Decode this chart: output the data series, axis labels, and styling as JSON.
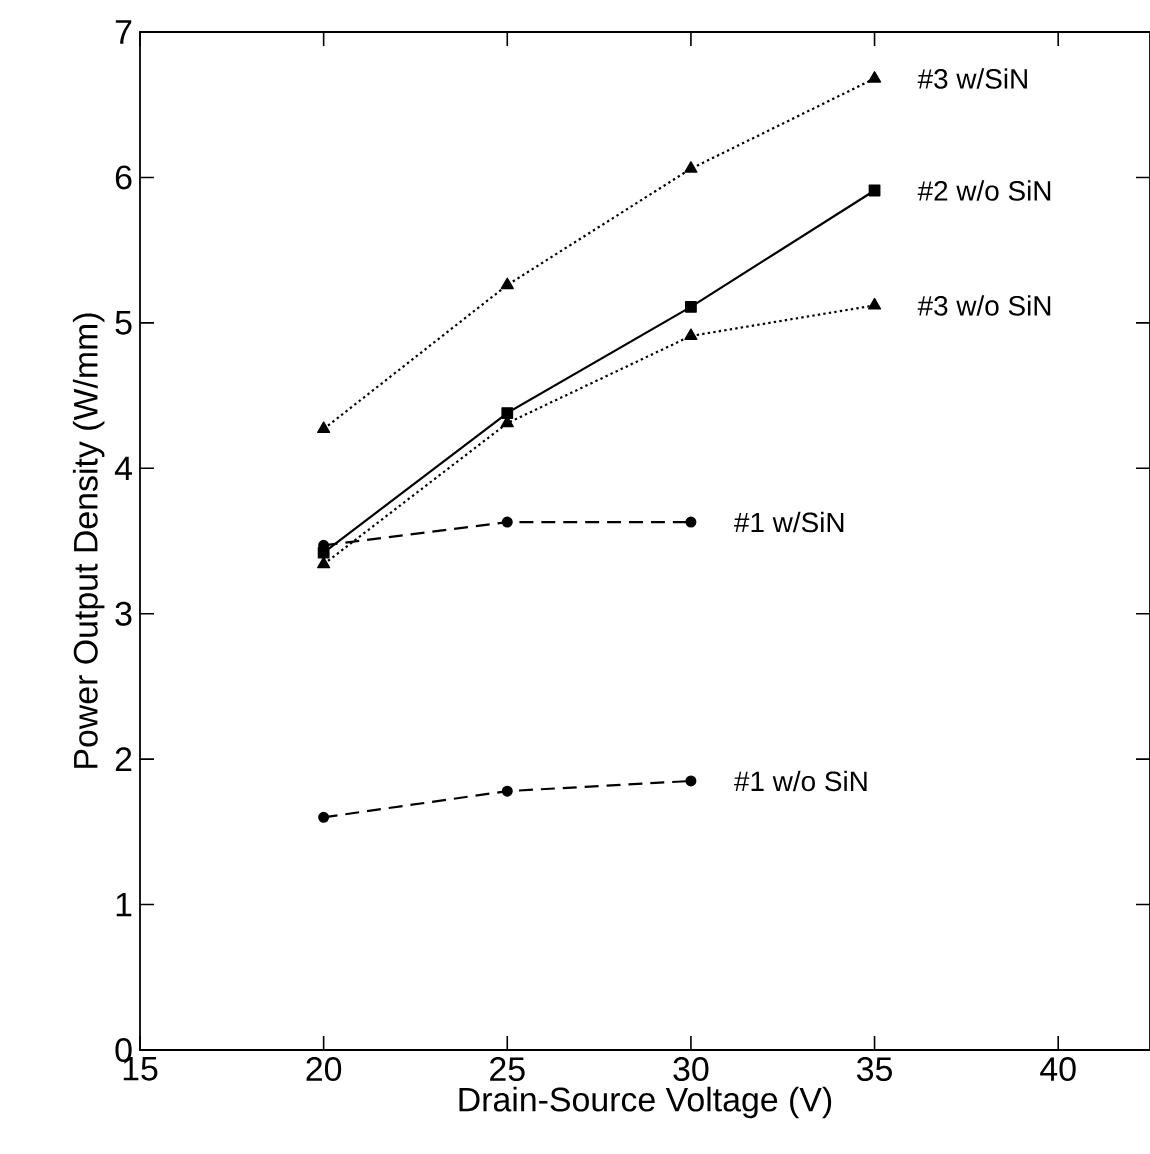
{
  "chart_data": {
    "type": "line",
    "xlabel": "Drain-Source Voltage (V)",
    "ylabel": "Power Output Density (W/mm)",
    "xlim": [
      15,
      42.5
    ],
    "ylim": [
      0,
      7
    ],
    "xticks": [
      15,
      20,
      25,
      30,
      35,
      40
    ],
    "yticks": [
      0,
      1,
      2,
      3,
      4,
      5,
      6,
      7
    ],
    "grid": false,
    "legend": "right",
    "series": [
      {
        "name": "#3 w/SiN",
        "color": "#000000",
        "x": [
          20,
          25,
          30,
          35
        ],
        "values": [
          4.27,
          5.26,
          6.06,
          6.68
        ],
        "marker": "triangle",
        "line_style": "dotted"
      },
      {
        "name": "#2 w/o SiN",
        "color": "#000000",
        "x": [
          20,
          25,
          30,
          35
        ],
        "values": [
          3.42,
          4.38,
          5.11,
          5.91
        ],
        "marker": "square",
        "line_style": "solid"
      },
      {
        "name": "#3 w/o SiN",
        "color": "#000000",
        "x": [
          20,
          25,
          30,
          35
        ],
        "values": [
          3.34,
          4.31,
          4.91,
          5.12
        ],
        "marker": "triangle",
        "line_style": "dotted"
      },
      {
        "name": "#1 w/SiN",
        "color": "#000000",
        "x": [
          20,
          25,
          30
        ],
        "values": [
          3.47,
          3.63,
          3.63
        ],
        "marker": "circle",
        "line_style": "dashed"
      },
      {
        "name": "#1 w/o SiN",
        "color": "#000000",
        "x": [
          20,
          25,
          30
        ],
        "values": [
          1.6,
          1.78,
          1.85
        ],
        "marker": "circle",
        "line_style": "dashed"
      }
    ]
  }
}
